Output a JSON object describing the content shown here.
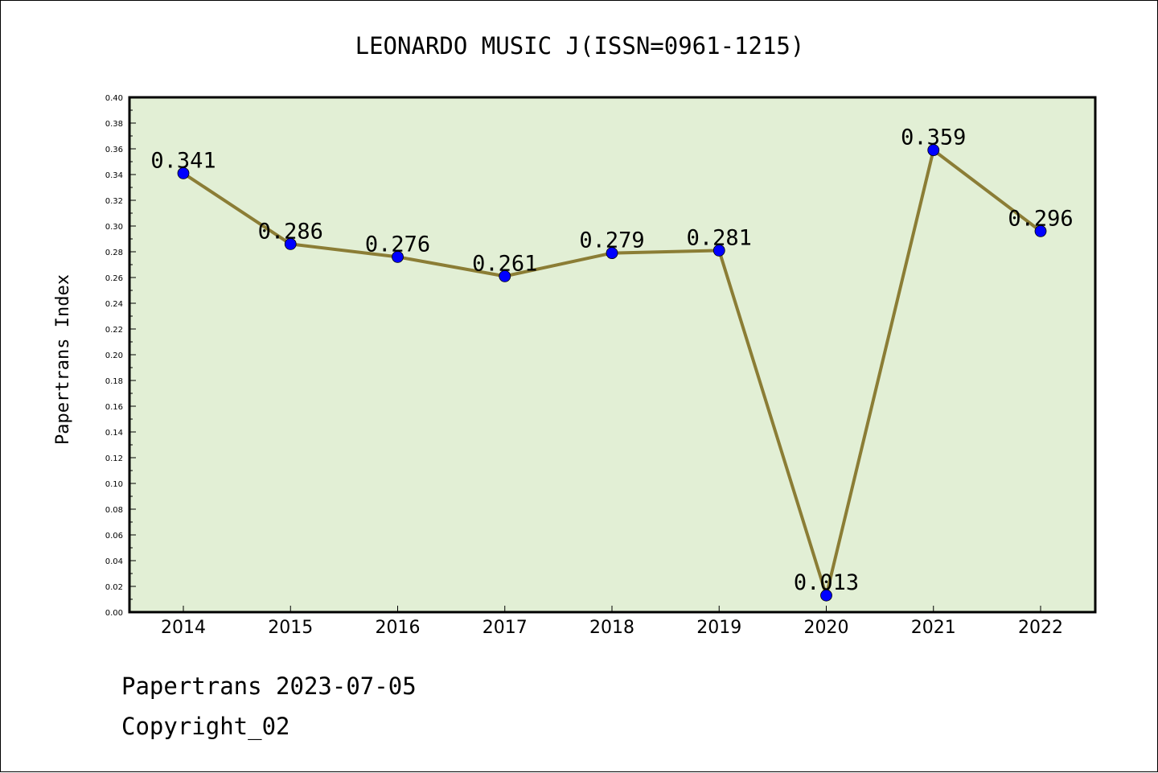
{
  "chart_data": {
    "type": "line",
    "title": "LEONARDO MUSIC J(ISSN=0961-1215)",
    "xlabel": "",
    "ylabel": "Papertrans Index",
    "categories": [
      "2014",
      "2015",
      "2016",
      "2017",
      "2018",
      "2019",
      "2020",
      "2021",
      "2022"
    ],
    "series": [
      {
        "values": [
          0.341,
          0.286,
          0.276,
          0.261,
          0.279,
          0.281,
          0.013,
          0.359,
          0.296
        ],
        "data_labels": [
          "0.341",
          "0.286",
          "0.276",
          "0.261",
          "0.279",
          "0.281",
          "0.013",
          "0.359",
          "0.296"
        ],
        "line_color": "#8b7d35",
        "marker_color": "#0000ff"
      }
    ],
    "ylim": [
      0,
      0.4
    ],
    "yticks": [
      "0.00",
      "0.02",
      "0.04",
      "0.06",
      "0.08",
      "0.10",
      "0.12",
      "0.14",
      "0.16",
      "0.18",
      "0.20",
      "0.22",
      "0.24",
      "0.26",
      "0.28",
      "0.30",
      "0.32",
      "0.34",
      "0.36",
      "0.38",
      "0.40"
    ],
    "grid": false,
    "legend": "none",
    "plot_background": "#e2efd5"
  },
  "footer": {
    "source": "Papertrans 2023-07-05",
    "copyright": "Copyright_02"
  }
}
